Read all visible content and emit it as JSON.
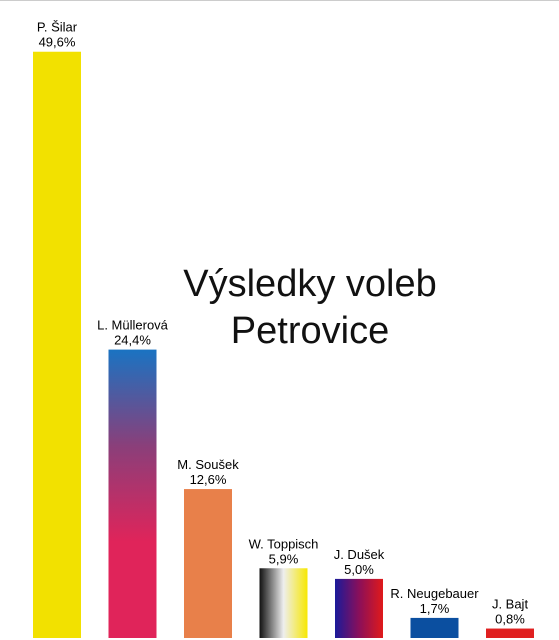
{
  "chart_data": {
    "type": "bar",
    "title": "Výsledky voleb",
    "subtitle": "Petrovice",
    "categories": [
      "P. Šilar",
      "L. Müllerová",
      "M. Soušek",
      "W. Toppisch",
      "J. Dušek",
      "R. Neugebauer",
      "J. Bajt"
    ],
    "values": [
      49.6,
      24.4,
      12.6,
      5.9,
      5.0,
      1.7,
      0.8
    ],
    "value_labels": [
      "49,6%",
      "24,4%",
      "12,6%",
      "5,9%",
      "5,0%",
      "1,7%",
      "0,8%"
    ],
    "ylim": [
      0,
      50
    ],
    "grid": false,
    "legend": "none",
    "bar_styles": [
      {
        "type": "solid",
        "colors": [
          "#f2e100"
        ]
      },
      {
        "type": "vgradient",
        "colors": [
          "#1a73c2",
          "#8a3f7a",
          "#e0245a",
          "#e0245a"
        ]
      },
      {
        "type": "solid",
        "colors": [
          "#e8804a"
        ]
      },
      {
        "type": "hgradient",
        "colors": [
          "#111111",
          "#eeeeee",
          "#f7e800"
        ]
      },
      {
        "type": "hgradient",
        "colors": [
          "#1a1a9a",
          "#8a0f5a",
          "#e01a1a"
        ]
      },
      {
        "type": "solid",
        "colors": [
          "#0b4fa0"
        ]
      },
      {
        "type": "solid",
        "colors": [
          "#e02020"
        ]
      }
    ]
  }
}
